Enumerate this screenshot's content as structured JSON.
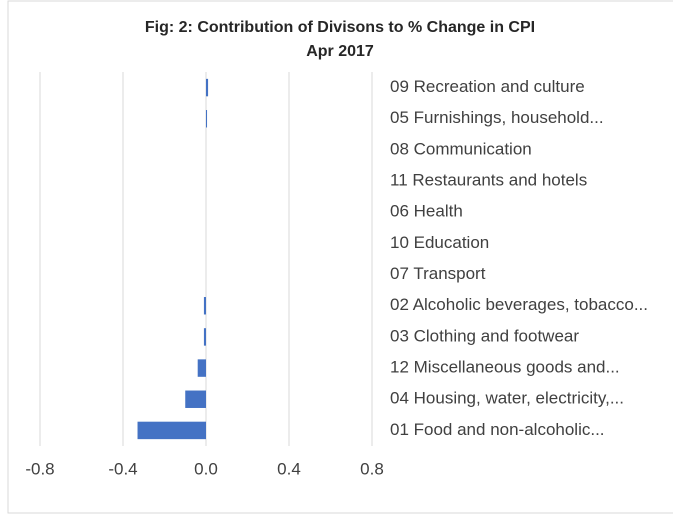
{
  "chart_data": {
    "type": "hbar",
    "title": "Fig: 2: Contribution of Divisons to % Change in CPI",
    "subtitle": "Apr 2017",
    "categories": [
      "09 Recreation and culture",
      "05 Furnishings, household...",
      "08 Communication",
      "11 Restaurants and hotels",
      "06 Health",
      "10 Education",
      "07 Transport",
      "02 Alcoholic beverages, tobacco...",
      "03 Clothing and footwear",
      "12 Miscellaneous goods and...",
      "04 Housing, water, electricity,...",
      "01 Food and non-alcoholic..."
    ],
    "values": [
      0.01,
      0.005,
      0,
      0,
      0,
      0,
      0,
      -0.01,
      -0.01,
      -0.04,
      -0.1,
      -0.33
    ],
    "color": "#4472c4",
    "xlim": [
      -0.8,
      0.8
    ],
    "xticks": [
      -0.8,
      -0.4,
      {
        "value": 0,
        "label": "0.0"
      },
      0.4,
      0.8
    ],
    "grid": true
  }
}
